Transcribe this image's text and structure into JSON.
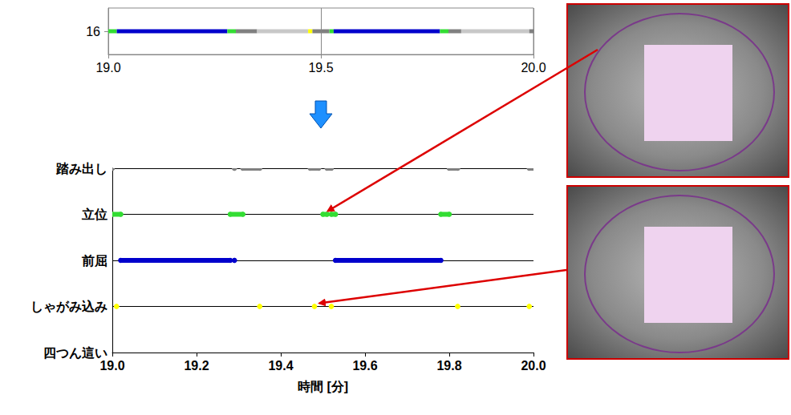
{
  "chart_data": [
    {
      "type": "timeline",
      "categories": [
        "16"
      ],
      "values": [
        [
          19.0,
          19.02
        ],
        [
          19.02,
          19.28
        ],
        [
          19.28,
          19.3
        ],
        [
          19.3,
          19.35
        ],
        [
          19.35,
          19.47
        ],
        [
          19.47,
          19.48
        ],
        [
          19.48,
          19.52
        ],
        [
          19.52,
          19.53
        ],
        [
          19.53,
          19.78
        ],
        [
          19.78,
          19.8
        ],
        [
          19.8,
          19.83
        ],
        [
          19.83,
          19.99
        ],
        [
          19.99,
          20.0
        ]
      ],
      "colors": [
        "#33dd33",
        "#0000cc",
        "#33dd33",
        "#808080",
        "#c8c8c8",
        "#ffff00",
        "#808080",
        "#33dd33",
        "#0000cc",
        "#33dd33",
        "#808080",
        "#c8c8c8",
        "#808080"
      ],
      "xlim": [
        19,
        20
      ],
      "xticks": [
        {
          "value": 19,
          "label": "19.0"
        },
        {
          "value": 19.5,
          "label": "19.5"
        },
        {
          "value": 20,
          "label": "20.0"
        }
      ],
      "grid": "x"
    },
    {
      "type": "event",
      "x_label": "時間 [分]",
      "series": [
        {
          "name": "踏み出し",
          "color": "#808080",
          "values": [
            [
              19.0,
              19.0
            ],
            [
              19.29,
              19.29
            ],
            [
              19.31,
              19.35
            ],
            [
              19.47,
              19.49
            ],
            [
              19.51,
              19.52
            ],
            [
              19.8,
              19.82
            ],
            [
              19.99,
              20.0
            ]
          ]
        },
        {
          "name": "立位",
          "color": "#33dd33",
          "values": [
            [
              19.0,
              19.02
            ],
            [
              19.28,
              19.31
            ],
            [
              19.5,
              19.51
            ],
            [
              19.52,
              19.53
            ],
            [
              19.78,
              19.8
            ]
          ]
        },
        {
          "name": "前屈",
          "color": "#0000cc",
          "values": [
            [
              19.02,
              19.28
            ],
            [
              19.29,
              19.29
            ],
            [
              19.53,
              19.78
            ]
          ]
        },
        {
          "name": "しゃがみ込み",
          "color": "#ffff00",
          "values": [
            [
              19.01,
              19.01
            ],
            [
              19.35,
              19.35
            ],
            [
              19.48,
              19.48
            ],
            [
              19.52,
              19.52
            ],
            [
              19.82,
              19.82
            ],
            [
              19.99,
              19.99
            ]
          ]
        },
        {
          "name": "四つん這い",
          "color": "#cc00cc",
          "values": []
        }
      ],
      "xlim": [
        19,
        20
      ],
      "xticks": [
        {
          "value": 19,
          "label": "19.0"
        },
        {
          "value": 19.2,
          "label": "19.2"
        },
        {
          "value": 19.4,
          "label": "19.4"
        },
        {
          "value": 19.6,
          "label": "19.6"
        },
        {
          "value": 19.8,
          "label": "19.8"
        },
        {
          "value": 20,
          "label": "20.0"
        }
      ],
      "grid": "y"
    }
  ]
}
